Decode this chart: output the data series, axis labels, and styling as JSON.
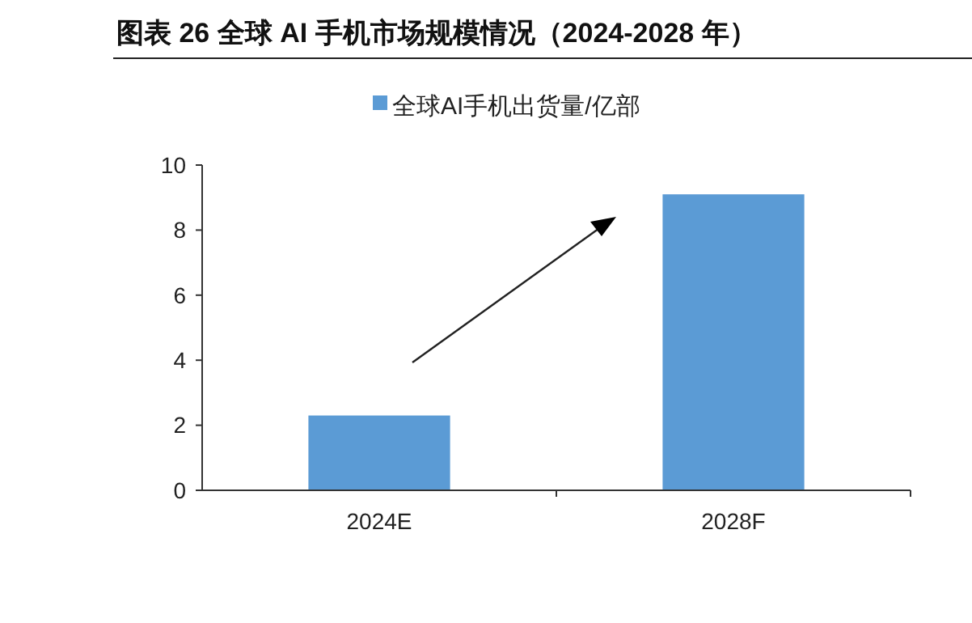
{
  "chart_data": {
    "type": "bar",
    "title": "图表 26 全球 AI 手机市场规模情况（2024-2028 年）",
    "categories": [
      "2024E",
      "2028F"
    ],
    "series": [
      {
        "name": "全球AI手机出货量/亿部",
        "color": "#5b9bd5",
        "values": [
          2.3,
          9.1
        ]
      }
    ],
    "ylim": [
      0,
      10
    ],
    "yticks": [
      0,
      2,
      4,
      6,
      8,
      10
    ],
    "grid": false,
    "legend": "top"
  }
}
